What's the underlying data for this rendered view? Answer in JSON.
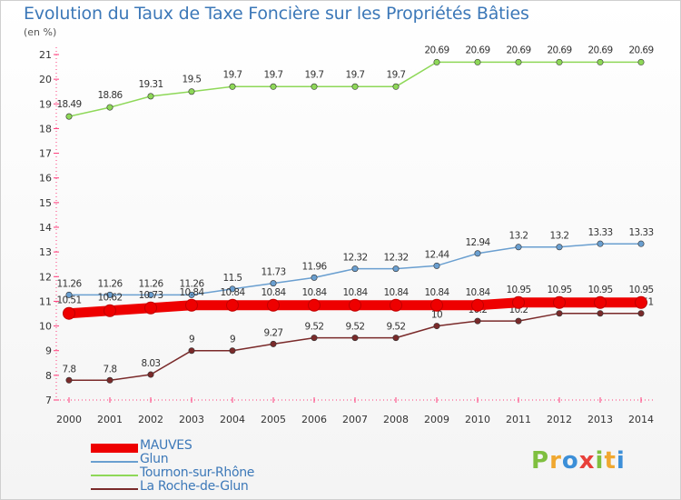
{
  "title": "Evolution du Taux de Taxe Foncière sur les Propriétés Bâties",
  "unit_label": "(en %)",
  "brand": {
    "letters": [
      "P",
      "r",
      "o",
      "x",
      "i",
      "t",
      "i"
    ],
    "colors": [
      "#7fbf3f",
      "#f0a830",
      "#3c8fd8",
      "#e8403a",
      "#7fbf3f",
      "#f0a830",
      "#3c8fd8"
    ]
  },
  "chart_data": {
    "type": "line",
    "x": [
      "2000",
      "2001",
      "2002",
      "2003",
      "2004",
      "2005",
      "2006",
      "2007",
      "2008",
      "2009",
      "2010",
      "2011",
      "2012",
      "2013",
      "2014"
    ],
    "ylim": [
      7,
      21
    ],
    "yticks": [
      "7",
      "8",
      "9",
      "10",
      "11",
      "12",
      "13",
      "14",
      "15",
      "16",
      "17",
      "18",
      "19",
      "20",
      "21"
    ],
    "grid": false,
    "legend_position": "bottom-left",
    "series": [
      {
        "name": "MAUVES",
        "color": "#ee0000",
        "values": [
          10.51,
          10.62,
          10.73,
          10.84,
          10.84,
          10.84,
          10.84,
          10.84,
          10.84,
          10.84,
          10.84,
          10.95,
          10.95,
          10.95,
          10.95
        ],
        "labels": [
          "10.51",
          "10.62",
          "10.73",
          "10.84",
          "10.84",
          "10.84",
          "10.84",
          "10.84",
          "10.84",
          "10.84",
          "10.84",
          "10.95",
          "10.95",
          "10.95",
          "10.95"
        ]
      },
      {
        "name": "Glun",
        "color": "#6a9fd0",
        "values": [
          11.26,
          11.26,
          11.26,
          11.26,
          11.5,
          11.73,
          11.96,
          12.32,
          12.32,
          12.44,
          12.94,
          13.2,
          13.2,
          13.33,
          13.33
        ],
        "labels": [
          "11.26",
          "11.26",
          "11.26",
          "11.26",
          "11.5",
          "11.73",
          "11.96",
          "12.32",
          "12.32",
          "12.44",
          "12.94",
          "13.2",
          "13.2",
          "13.33",
          "13.33"
        ]
      },
      {
        "name": "Tournon-sur-Rhône",
        "color": "#8ed858",
        "values": [
          18.49,
          18.86,
          19.31,
          19.5,
          19.7,
          19.7,
          19.7,
          19.7,
          19.7,
          20.69,
          20.69,
          20.69,
          20.69,
          20.69,
          20.69
        ],
        "labels": [
          "18.49",
          "18.86",
          "19.31",
          "19.5",
          "19.7",
          "19.7",
          "19.7",
          "19.7",
          "19.7",
          "20.69",
          "20.69",
          "20.69",
          "20.69",
          "20.69",
          "20.69"
        ]
      },
      {
        "name": "La Roche-de-Glun",
        "color": "#7a2a2a",
        "values": [
          7.8,
          7.8,
          8.03,
          9,
          9,
          9.27,
          9.52,
          9.52,
          9.52,
          10,
          10.2,
          10.2,
          10.51,
          10.51,
          10.51
        ],
        "labels": [
          "7.8",
          "7.8",
          "8.03",
          "9",
          "9",
          "9.27",
          "9.52",
          "9.52",
          "9.52",
          "10",
          "10.2",
          "10.2",
          "10.51",
          "10.51",
          "10.51"
        ]
      }
    ]
  }
}
